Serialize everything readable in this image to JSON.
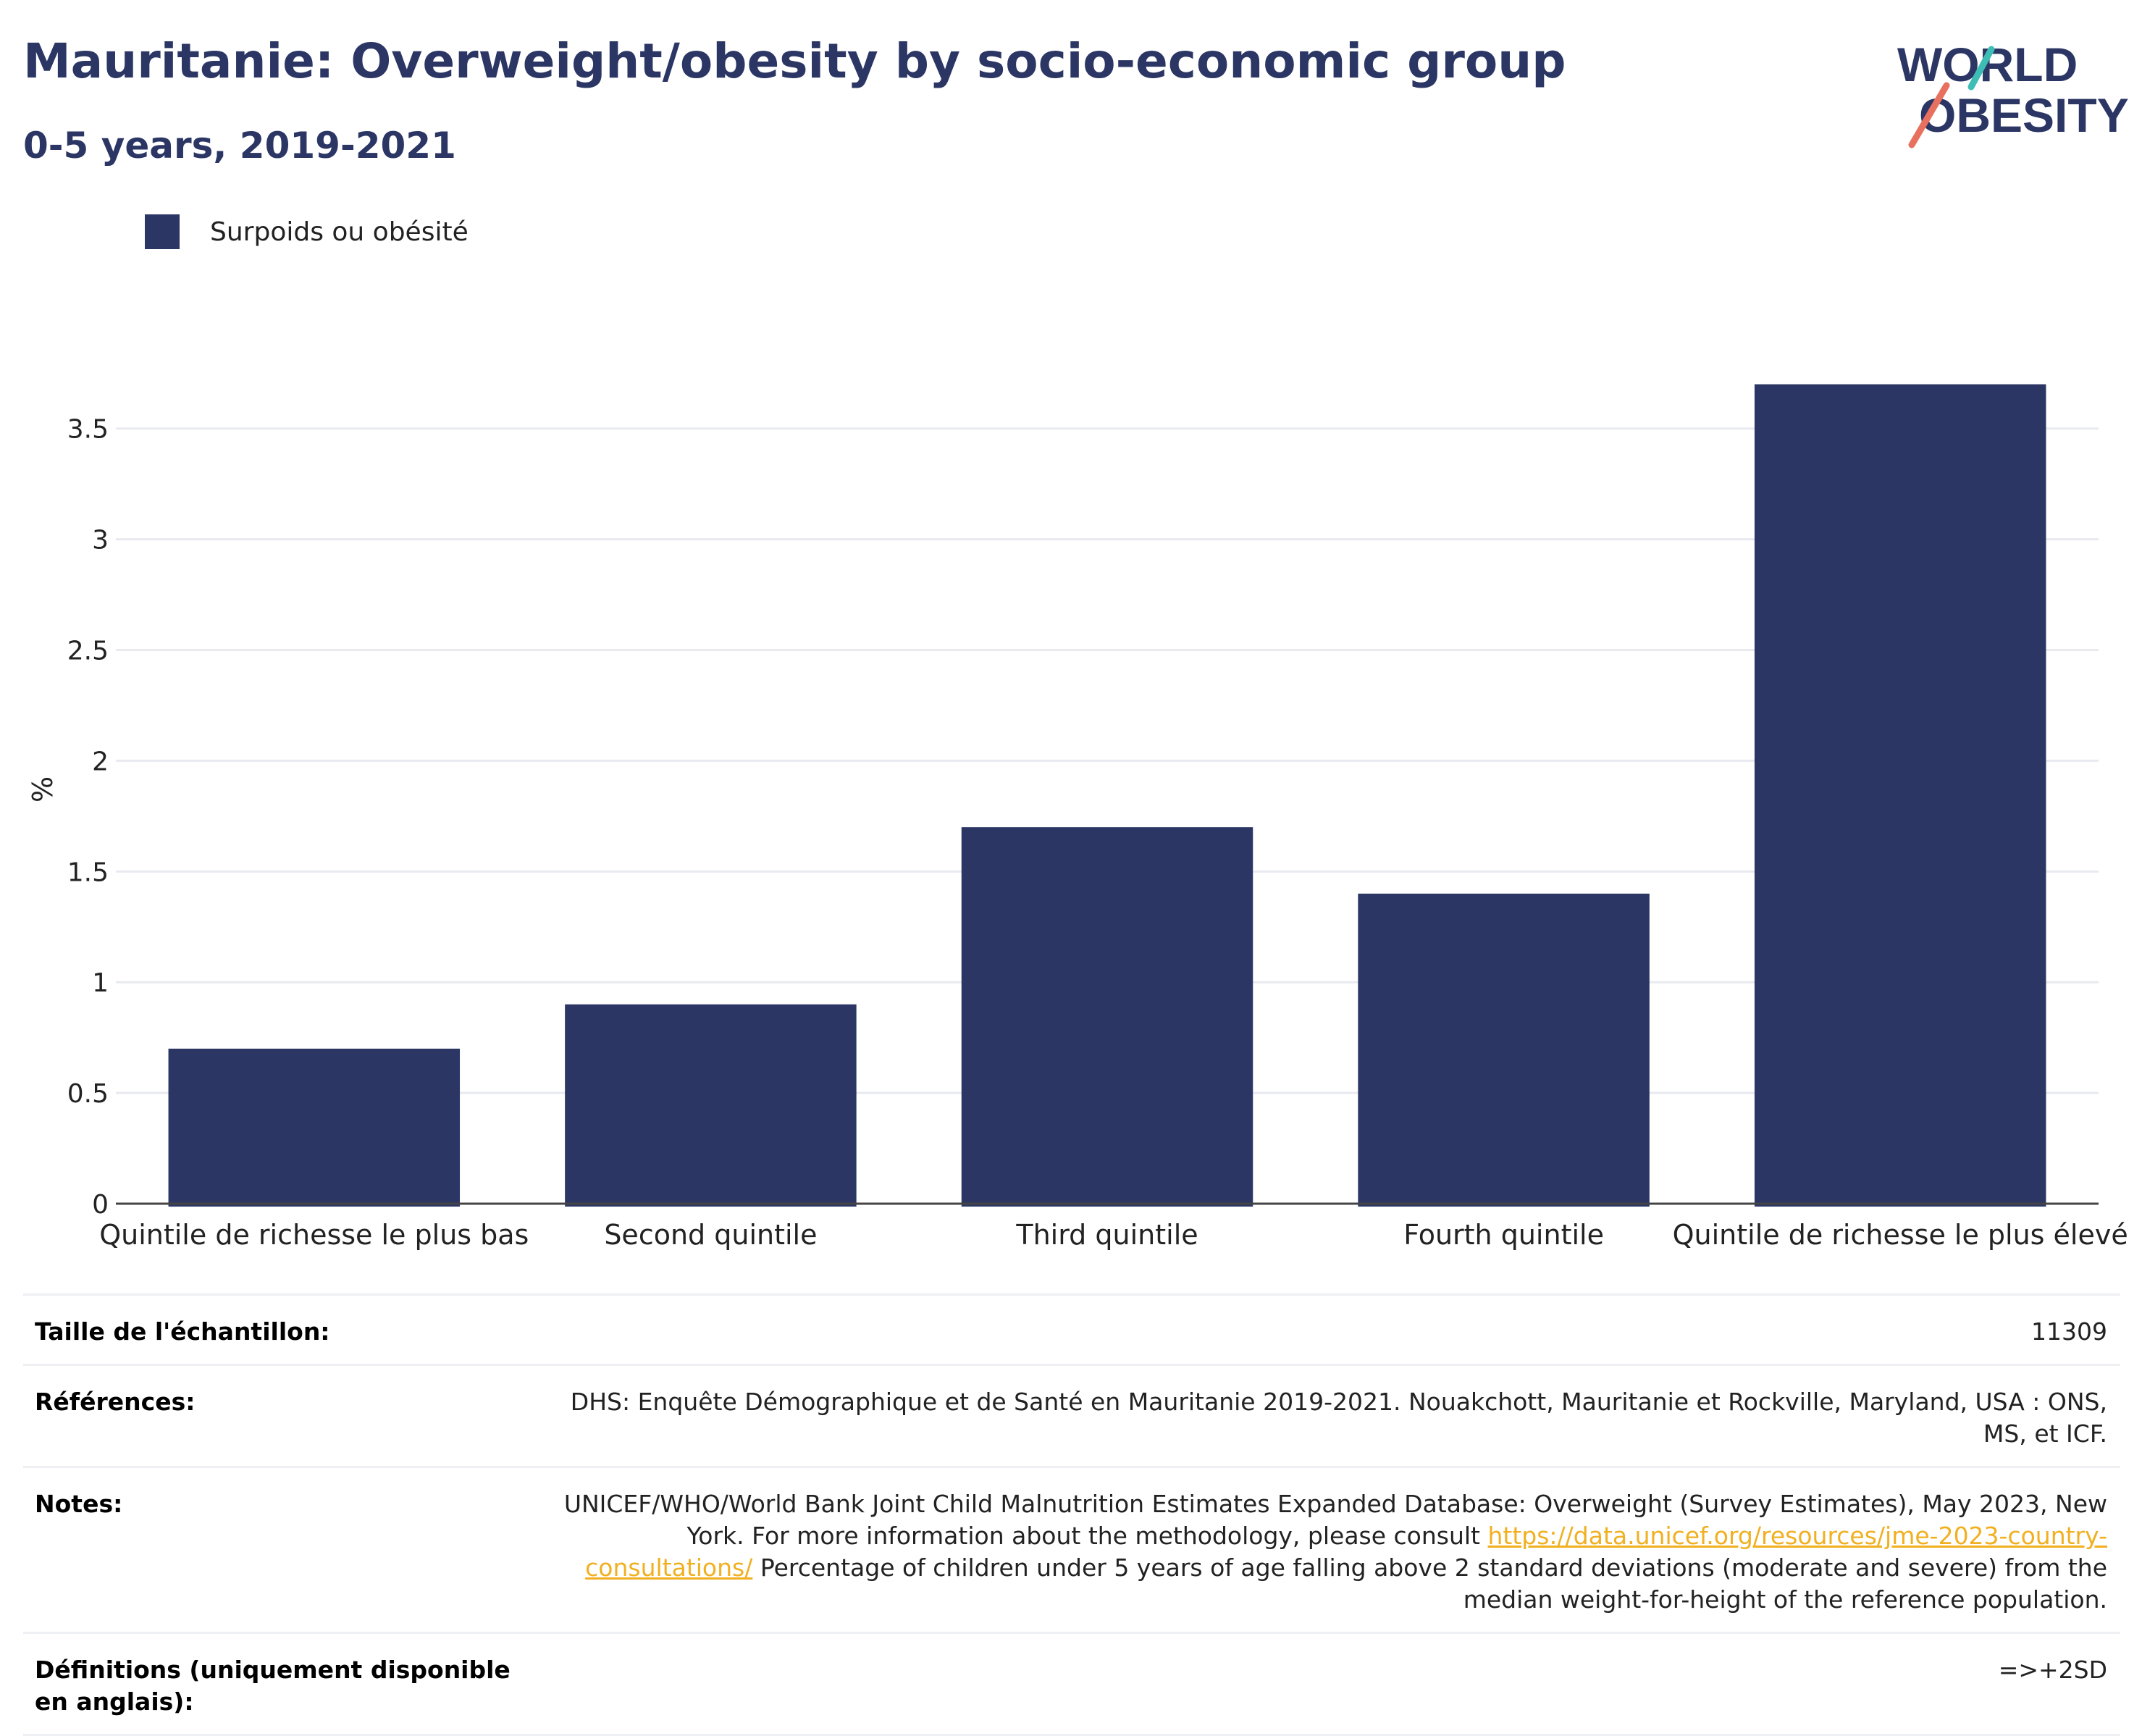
{
  "header": {
    "title": "Mauritanie: Overweight/obesity by socio-economic group",
    "subtitle": "0-5 years, 2019-2021"
  },
  "logo": {
    "line1": "WORLD",
    "line2": "OBESITY",
    "color_text": "#2b3664",
    "color_teal": "#3dbdb5",
    "color_coral": "#e8705e"
  },
  "chart_data": {
    "type": "bar",
    "categories": [
      "Quintile de richesse le plus bas",
      "Second quintile",
      "Third quintile",
      "Fourth quintile",
      "Quintile de richesse le plus élevé"
    ],
    "series": [
      {
        "name": "Surpoids ou obésité",
        "values": [
          0.7,
          0.9,
          1.7,
          1.4,
          3.7
        ],
        "color": "#2b3664"
      }
    ],
    "ylabel": "%",
    "ylim": [
      0,
      3.8
    ],
    "yticks": [
      0,
      0.5,
      1,
      1.5,
      2,
      2.5,
      3,
      3.5
    ],
    "ytick_labels": [
      "0",
      "0.5",
      "1",
      "1.5",
      "2",
      "2.5",
      "3",
      "3.5"
    ],
    "grid": true,
    "legend": "top-left"
  },
  "info": {
    "sample_label": "Taille de l'échantillon:",
    "sample_value": "11309",
    "references_label": "Références:",
    "references_value": "DHS: Enquête Démographique et de Santé en Mauritanie 2019-2021. Nouakchott, Mauritanie et Rockville, Maryland, USA : ONS, MS, et ICF.",
    "notes_label": "Notes:",
    "notes_value_before": "UNICEF/WHO/World Bank Joint Child Malnutrition Estimates Expanded Database: Overweight (Survey Estimates), May 2023, New York. For more information about the methodology, please consult",
    "notes_link": "https://data.unicef.org/resources/jme-2023-country-consultations/",
    "notes_value_after": "Percentage of children under 5 years of age falling above 2 standard deviations (moderate and severe) from the median weight-for-height of the reference population.",
    "definitions_label": "Définitions (uniquement disponible en anglais):",
    "definitions_value": "=>+2SD"
  }
}
